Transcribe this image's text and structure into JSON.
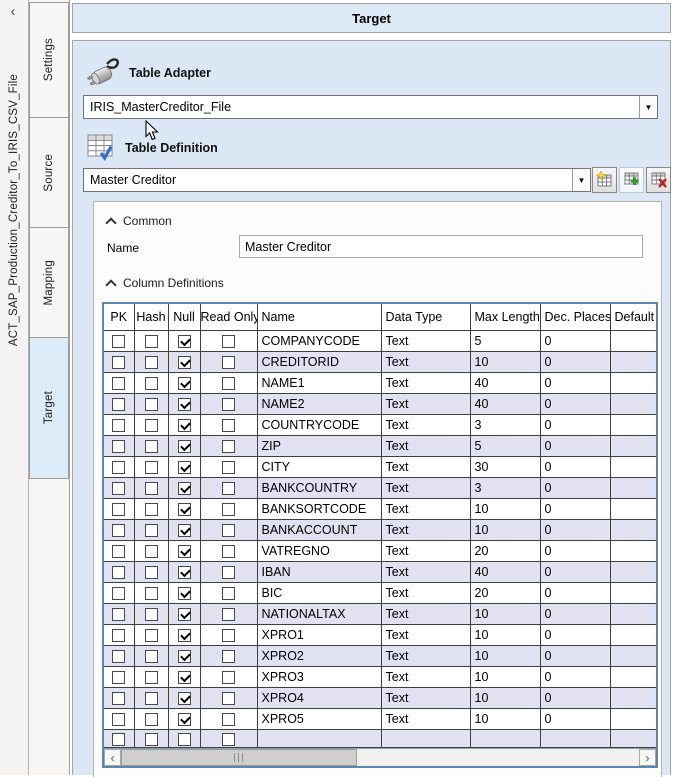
{
  "window": {
    "collapse_icon": "‹",
    "project_name": "ACT_SAP_Production_Creditor_To_IRIS_CSV_File"
  },
  "tabs": {
    "items": [
      {
        "label": "Settings",
        "active": false
      },
      {
        "label": "Source",
        "active": false
      },
      {
        "label": "Mapping",
        "active": false
      },
      {
        "label": "Target",
        "active": true
      }
    ]
  },
  "header": {
    "title": "Target"
  },
  "table_adapter": {
    "label": "Table Adapter",
    "selected": "IRIS_MasterCreditor_File"
  },
  "table_definition": {
    "label": "Table Definition",
    "selected": "Master Creditor",
    "buttons": [
      {
        "name": "new-table-definition",
        "icon": "grid-star-icon"
      },
      {
        "name": "add-table-definition",
        "icon": "grid-plus-icon"
      },
      {
        "name": "delete-table-definition",
        "icon": "grid-delete-icon"
      }
    ]
  },
  "common": {
    "section_label": "Common",
    "name_label": "Name",
    "name_value": "Master Creditor"
  },
  "column_definitions": {
    "section_label": "Column Definitions",
    "headers": [
      "PK",
      "Hash",
      "Null",
      "Read Only",
      "Name",
      "Data Type",
      "Max Length",
      "Dec. Places",
      "Default"
    ],
    "rows": [
      {
        "pk": false,
        "hash": false,
        "null": true,
        "read_only": false,
        "name": "COMPANYCODE",
        "data_type": "Text",
        "max_length": "5",
        "dec_places": "0",
        "default": ""
      },
      {
        "pk": false,
        "hash": false,
        "null": true,
        "read_only": false,
        "name": "CREDITORID",
        "data_type": "Text",
        "max_length": "10",
        "dec_places": "0",
        "default": ""
      },
      {
        "pk": false,
        "hash": false,
        "null": true,
        "read_only": false,
        "name": "NAME1",
        "data_type": "Text",
        "max_length": "40",
        "dec_places": "0",
        "default": ""
      },
      {
        "pk": false,
        "hash": false,
        "null": true,
        "read_only": false,
        "name": "NAME2",
        "data_type": "Text",
        "max_length": "40",
        "dec_places": "0",
        "default": ""
      },
      {
        "pk": false,
        "hash": false,
        "null": true,
        "read_only": false,
        "name": "COUNTRYCODE",
        "data_type": "Text",
        "max_length": "3",
        "dec_places": "0",
        "default": ""
      },
      {
        "pk": false,
        "hash": false,
        "null": true,
        "read_only": false,
        "name": "ZIP",
        "data_type": "Text",
        "max_length": "5",
        "dec_places": "0",
        "default": ""
      },
      {
        "pk": false,
        "hash": false,
        "null": true,
        "read_only": false,
        "name": "CITY",
        "data_type": "Text",
        "max_length": "30",
        "dec_places": "0",
        "default": ""
      },
      {
        "pk": false,
        "hash": false,
        "null": true,
        "read_only": false,
        "name": "BANKCOUNTRY",
        "data_type": "Text",
        "max_length": "3",
        "dec_places": "0",
        "default": ""
      },
      {
        "pk": false,
        "hash": false,
        "null": true,
        "read_only": false,
        "name": "BANKSORTCODE",
        "data_type": "Text",
        "max_length": "10",
        "dec_places": "0",
        "default": ""
      },
      {
        "pk": false,
        "hash": false,
        "null": true,
        "read_only": false,
        "name": "BANKACCOUNT",
        "data_type": "Text",
        "max_length": "10",
        "dec_places": "0",
        "default": ""
      },
      {
        "pk": false,
        "hash": false,
        "null": true,
        "read_only": false,
        "name": "VATREGNO",
        "data_type": "Text",
        "max_length": "20",
        "dec_places": "0",
        "default": ""
      },
      {
        "pk": false,
        "hash": false,
        "null": true,
        "read_only": false,
        "name": "IBAN",
        "data_type": "Text",
        "max_length": "40",
        "dec_places": "0",
        "default": ""
      },
      {
        "pk": false,
        "hash": false,
        "null": true,
        "read_only": false,
        "name": "BIC",
        "data_type": "Text",
        "max_length": "20",
        "dec_places": "0",
        "default": ""
      },
      {
        "pk": false,
        "hash": false,
        "null": true,
        "read_only": false,
        "name": "NATIONALTAX",
        "data_type": "Text",
        "max_length": "10",
        "dec_places": "0",
        "default": ""
      },
      {
        "pk": false,
        "hash": false,
        "null": true,
        "read_only": false,
        "name": "XPRO1",
        "data_type": "Text",
        "max_length": "10",
        "dec_places": "0",
        "default": ""
      },
      {
        "pk": false,
        "hash": false,
        "null": true,
        "read_only": false,
        "name": "XPRO2",
        "data_type": "Text",
        "max_length": "10",
        "dec_places": "0",
        "default": ""
      },
      {
        "pk": false,
        "hash": false,
        "null": true,
        "read_only": false,
        "name": "XPRO3",
        "data_type": "Text",
        "max_length": "10",
        "dec_places": "0",
        "default": ""
      },
      {
        "pk": false,
        "hash": false,
        "null": true,
        "read_only": false,
        "name": "XPRO4",
        "data_type": "Text",
        "max_length": "10",
        "dec_places": "0",
        "default": ""
      },
      {
        "pk": false,
        "hash": false,
        "null": true,
        "read_only": false,
        "name": "XPRO5",
        "data_type": "Text",
        "max_length": "10",
        "dec_places": "0",
        "default": ""
      }
    ],
    "empty_row": {
      "pk": false,
      "hash": false,
      "null": false,
      "read_only": false,
      "name": "",
      "data_type": "",
      "max_length": "",
      "dec_places": "",
      "default": ""
    }
  },
  "scrollbar": {
    "left_arrow": "‹",
    "right_arrow": "›"
  },
  "icons": {
    "dropdown_arrow": "▼"
  },
  "colors": {
    "panel_bg": "#dbe7f4",
    "header_bg": "#dde9f6",
    "tab_active_bg": "#dcebf8",
    "alt_row_bg": "#e1e1f2",
    "table_border": "#5d87b0",
    "check_color": "#000000"
  }
}
